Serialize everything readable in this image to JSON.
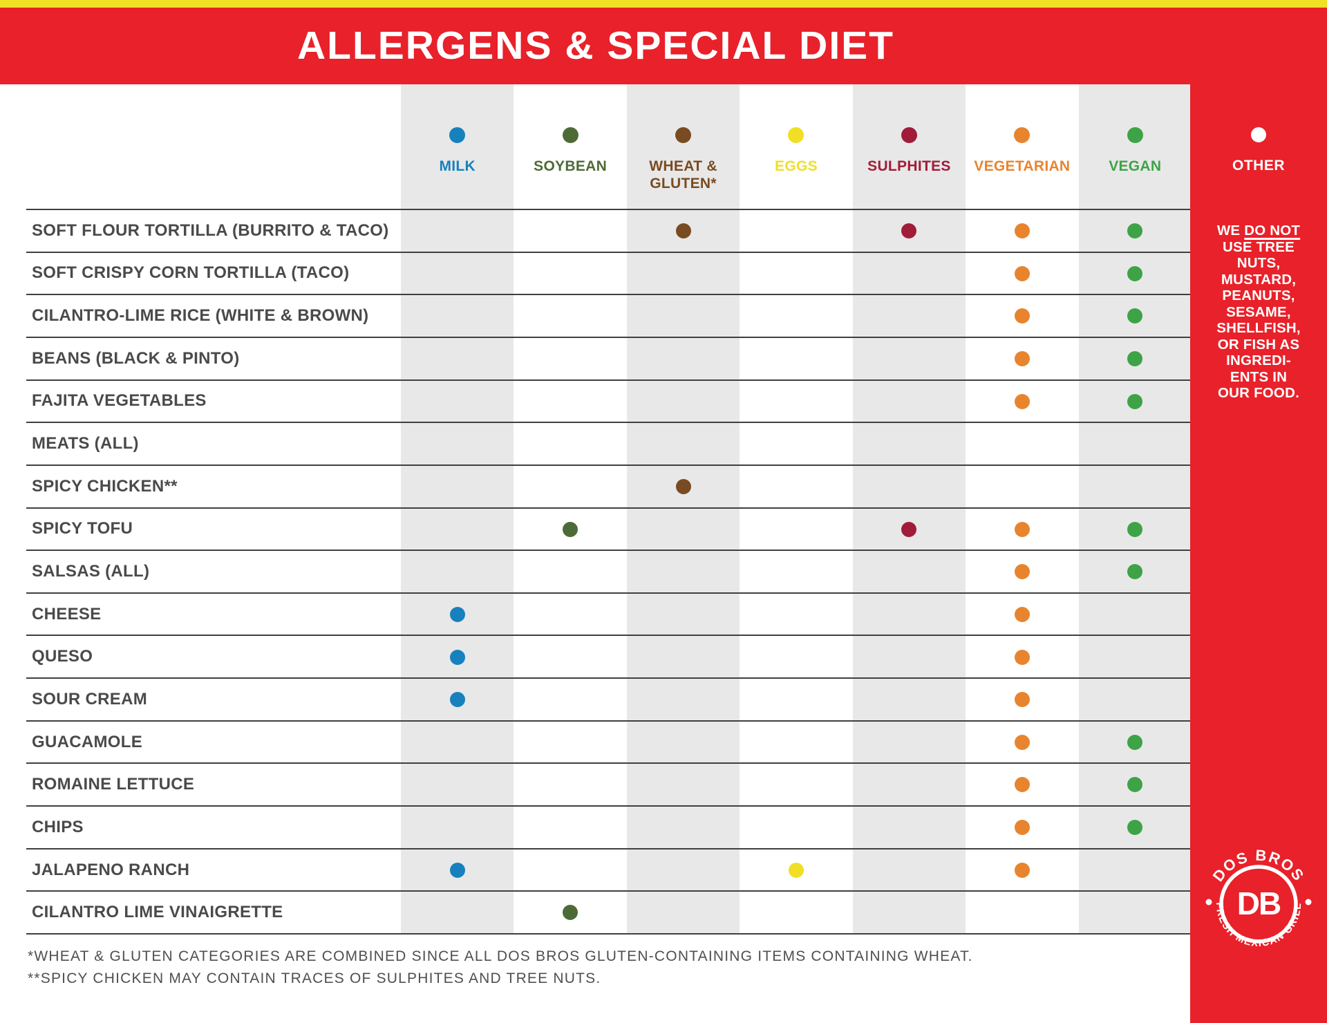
{
  "header": {
    "title": "ALLERGENS & SPECIAL DIET"
  },
  "chart_data": {
    "type": "table",
    "title": "ALLERGENS & SPECIAL DIET",
    "columns": [
      {
        "id": "milk",
        "label": "MILK",
        "label_lines": [
          "MILK"
        ],
        "color": "#1781BD",
        "shaded": true
      },
      {
        "id": "soybean",
        "label": "SOYBEAN",
        "label_lines": [
          "SOYBEAN"
        ],
        "color": "#4D6B36",
        "shaded": false
      },
      {
        "id": "wheat_gluten",
        "label": "WHEAT & GLUTEN*",
        "label_lines": [
          "WHEAT &",
          "GLUTEN*"
        ],
        "color": "#794B22",
        "shaded": true
      },
      {
        "id": "eggs",
        "label": "EGGS",
        "label_lines": [
          "EGGS"
        ],
        "color": "#F0DF26",
        "shaded": false
      },
      {
        "id": "sulphites",
        "label": "SULPHITES",
        "label_lines": [
          "SULPHITES"
        ],
        "color": "#A11C38",
        "shaded": true
      },
      {
        "id": "vegetarian",
        "label": "VEGETARIAN",
        "label_lines": [
          "VEGETARIAN"
        ],
        "color": "#E8842E",
        "shaded": false
      },
      {
        "id": "vegan",
        "label": "VEGAN",
        "label_lines": [
          "VEGAN"
        ],
        "color": "#3EA346",
        "shaded": true
      }
    ],
    "rows": [
      {
        "label": "SOFT FLOUR TORTILLA (BURRITO & TACO)",
        "marks": [
          "wheat_gluten",
          "sulphites",
          "vegetarian",
          "vegan"
        ]
      },
      {
        "label": "SOFT CRISPY CORN TORTILLA (TACO)",
        "marks": [
          "vegetarian",
          "vegan"
        ]
      },
      {
        "label": "CILANTRO-LIME RICE (WHITE & BROWN)",
        "marks": [
          "vegetarian",
          "vegan"
        ]
      },
      {
        "label": "BEANS (BLACK & PINTO)",
        "marks": [
          "vegetarian",
          "vegan"
        ]
      },
      {
        "label": "FAJITA VEGETABLES",
        "marks": [
          "vegetarian",
          "vegan"
        ]
      },
      {
        "label": "MEATS (ALL)",
        "marks": []
      },
      {
        "label": "SPICY CHICKEN**",
        "marks": [
          "wheat_gluten"
        ]
      },
      {
        "label": "SPICY TOFU",
        "marks": [
          "soybean",
          "sulphites",
          "vegetarian",
          "vegan"
        ]
      },
      {
        "label": "SALSAS (ALL)",
        "marks": [
          "vegetarian",
          "vegan"
        ]
      },
      {
        "label": "CHEESE",
        "marks": [
          "milk",
          "vegetarian"
        ]
      },
      {
        "label": "QUESO",
        "marks": [
          "milk",
          "vegetarian"
        ]
      },
      {
        "label": "SOUR CREAM",
        "marks": [
          "milk",
          "vegetarian"
        ]
      },
      {
        "label": "GUACAMOLE",
        "marks": [
          "vegetarian",
          "vegan"
        ]
      },
      {
        "label": "ROMAINE LETTUCE",
        "marks": [
          "vegetarian",
          "vegan"
        ]
      },
      {
        "label": "CHIPS",
        "marks": [
          "vegetarian",
          "vegan"
        ]
      },
      {
        "label": "JALAPENO RANCH",
        "marks": [
          "milk",
          "eggs",
          "vegetarian"
        ]
      },
      {
        "label": "CILANTRO LIME VINAIGRETTE",
        "marks": [
          "soybean"
        ]
      }
    ],
    "legend_position": "top",
    "grid": "horizontal-lines"
  },
  "sidebar": {
    "column_label": "OTHER",
    "dot_color": "#FFFFFF",
    "note": {
      "prefix": "WE ",
      "underlined": "DO NOT",
      "lines": [
        "USE TREE",
        "NUTS,",
        "MUSTARD,",
        "PEANUTS,",
        "SESAME,",
        "SHELLFISH,",
        "OR FISH AS",
        "INGREDI-",
        "ENTS IN",
        "OUR FOOD."
      ]
    }
  },
  "footnotes": [
    "*WHEAT & GLUTEN CATEGORIES ARE COMBINED SINCE ALL DOS BROS GLUTEN-CONTAINING ITEMS CONTAINING WHEAT.",
    "**SPICY CHICKEN MAY CONTAIN TRACES OF SULPHITES AND TREE NUTS."
  ],
  "logo": {
    "arc_top": "DOS BROS",
    "monogram": "DB",
    "arc_bottom": "FRESH MEXICAN GRILL"
  },
  "colors": {
    "brand_red": "#E8212A",
    "top_bar_yellow": "#F0E125",
    "stripe_gray": "#E8E8E8",
    "row_line": "#3F3F3F",
    "row_label_gray": "#4A4A4A",
    "footnote_gray": "#4F4F4F",
    "milk": "#1781BD",
    "soybean": "#4D6B36",
    "wheat_gluten": "#794B22",
    "eggs": "#F0DF26",
    "sulphites": "#A11C38",
    "vegetarian": "#E8842E",
    "vegan": "#3EA346",
    "other_dot": "#FFFFFF"
  }
}
